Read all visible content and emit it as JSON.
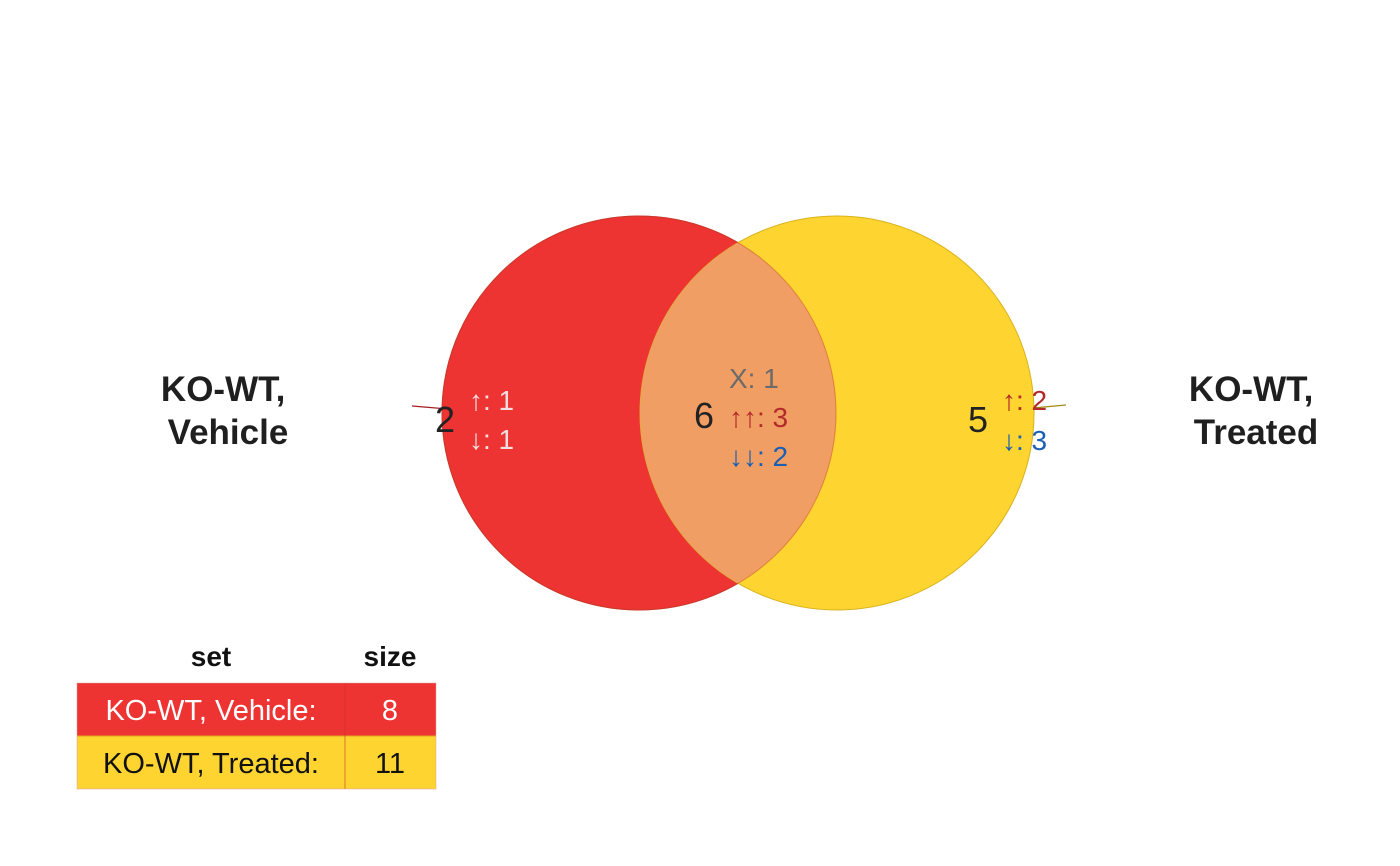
{
  "sets": [
    {
      "name": "KO-WT, Vehicle",
      "label_lines": [
        "KO-WT,",
        "Vehicle"
      ],
      "size": 8,
      "color": "#ee3333"
    },
    {
      "name": "KO-WT, Treated",
      "label_lines": [
        "KO-WT,",
        "Treated"
      ],
      "size": 11,
      "color": "#fdd430"
    }
  ],
  "overlap_color": "#f09e64",
  "regions": {
    "vehicle_only": {
      "count": "2",
      "lines": [
        "↑: 1",
        "↓: 1"
      ]
    },
    "both": {
      "count": "6",
      "lines": [
        "X: 1",
        "↑↑: 3",
        "↓↓: 2"
      ]
    },
    "treated_only": {
      "count": "5",
      "lines": [
        "↑: 2",
        "↓: 3"
      ]
    }
  },
  "table": {
    "headers": [
      "set",
      "size"
    ],
    "rows": [
      {
        "set": "KO-WT, Vehicle:",
        "size": "8"
      },
      {
        "set": "KO-WT, Treated:",
        "size": "11"
      }
    ]
  }
}
